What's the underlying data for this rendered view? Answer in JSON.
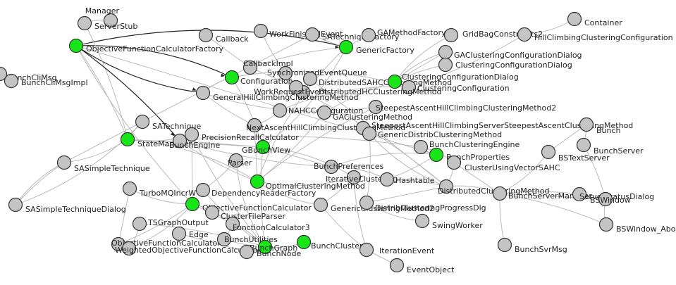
{
  "graph": {
    "colors": {
      "node_default": "#c4c4c4",
      "node_highlight": "#19e619",
      "edge": "#bbbbbb",
      "edge_dark": "#222222",
      "label": "#222222",
      "label_blue": "#1a1aa8"
    },
    "nodes": [
      {
        "id": "n1",
        "label": "Manager",
        "hl": false
      },
      {
        "id": "n2",
        "label": "ServerStub",
        "hl": false
      },
      {
        "id": "n3",
        "label": "ObjectiveFunctionCalculatorFactory",
        "hl": true
      },
      {
        "id": "n4",
        "label": "Callback",
        "hl": false
      },
      {
        "id": "n5",
        "label": "WorkFinishedEvent",
        "hl": false
      },
      {
        "id": "n6",
        "label": "SATechniqueFactory",
        "hl": false
      },
      {
        "id": "n7",
        "label": "GAMethodFactory",
        "hl": false
      },
      {
        "id": "n8",
        "label": "GridBagConstraints2",
        "hl": false
      },
      {
        "id": "n9",
        "label": "Container",
        "hl": false
      },
      {
        "id": "n10",
        "label": "HillClimbingClusteringConfiguration",
        "hl": false
      },
      {
        "id": "n11",
        "label": "GenericFactory",
        "hl": true
      },
      {
        "id": "n12",
        "label": "GAClusteringConfigurationDialog",
        "hl": false
      },
      {
        "id": "n13",
        "label": "ClusteringConfigurationDialog",
        "hl": false
      },
      {
        "id": "n14",
        "label": "BunchCliMsg",
        "hl": false
      },
      {
        "id": "n15",
        "label": "BunchCliMsgImpl",
        "hl": false
      },
      {
        "id": "n16",
        "label": "CallbackImpl",
        "hl": false
      },
      {
        "id": "n17",
        "label": "SynchronizedEventQueue",
        "hl": false
      },
      {
        "id": "n18",
        "label": "Configuration",
        "hl": true
      },
      {
        "id": "n19",
        "label": "DistributedSAHCClusteringMethod",
        "hl": false
      },
      {
        "id": "n20",
        "label": "ClusteringConfigurationDialog",
        "hl": true
      },
      {
        "id": "n21",
        "label": "ClusteringConfiguration",
        "hl": false
      },
      {
        "id": "n22",
        "label": "DistributedHCClusteringMethod",
        "hl": false
      },
      {
        "id": "n23",
        "label": "WorkRequestEvent",
        "hl": false
      },
      {
        "id": "n24",
        "label": "GeneralHillClimbingClusteringMethod",
        "hl": false
      },
      {
        "id": "n25",
        "label": "SteepestAscentHillClimbingClusteringMethod2",
        "hl": false
      },
      {
        "id": "n26",
        "label": "NAHCConfiguration",
        "hl": false
      },
      {
        "id": "n27",
        "label": "GAClusteringMethod",
        "hl": false
      },
      {
        "id": "n28",
        "label": "SATechnique",
        "hl": false
      },
      {
        "id": "n29",
        "label": "NextAscentHillClimbingClusteringMethod",
        "hl": false
      },
      {
        "id": "n30",
        "label": "SteepestAscentHillClimbingServerSteepestAscentClusteringMethod",
        "hl": false
      },
      {
        "id": "n31",
        "label": "Bunch",
        "hl": false
      },
      {
        "id": "n32",
        "label": "StateManager",
        "hl": true
      },
      {
        "id": "n33",
        "label": "BunchEngine",
        "hl": false
      },
      {
        "id": "n34",
        "label": "PrecisionRecallCalculator",
        "hl": false
      },
      {
        "id": "n35",
        "label": "GenericDistribClusteringMethod",
        "hl": false
      },
      {
        "id": "n36",
        "label": "BSTextServer",
        "hl": false
      },
      {
        "id": "n37",
        "label": "BunchServer",
        "hl": false
      },
      {
        "id": "n38",
        "label": "GBunchView",
        "hl": true
      },
      {
        "id": "n39",
        "label": "BunchClusteringEngine",
        "hl": false
      },
      {
        "id": "n40",
        "label": "BunchProperties",
        "hl": true
      },
      {
        "id": "n41",
        "label": "ClusterUsingVectorSAHC",
        "hl": false
      },
      {
        "id": "n42",
        "label": "SASimpleTechnique",
        "hl": false
      },
      {
        "id": "n43",
        "label": "Parser",
        "hl": false
      },
      {
        "id": "n44",
        "label": "BunchPreferences",
        "hl": false
      },
      {
        "id": "n45",
        "label": "IterativeClustering",
        "hl": false
      },
      {
        "id": "n46",
        "label": "Hashtable",
        "hl": false
      },
      {
        "id": "n47",
        "label": "TurboMQIncrW",
        "hl": false
      },
      {
        "id": "n48",
        "label": "DependencyReaderFactory",
        "hl": false
      },
      {
        "id": "n49",
        "label": "OptimalClusteringMethod",
        "hl": true
      },
      {
        "id": "n50",
        "label": "DistributedClusteringMethod",
        "hl": false
      },
      {
        "id": "n51",
        "label": "BunchServerManager",
        "hl": false
      },
      {
        "id": "n52",
        "label": "ServerStatusDialog",
        "hl": false
      },
      {
        "id": "n53",
        "label": "BSWindow",
        "hl": false
      },
      {
        "id": "n54",
        "label": "SASimpleTechniqueDialog",
        "hl": false
      },
      {
        "id": "n55",
        "label": "ObjectiveFunctionCalculator",
        "hl": true
      },
      {
        "id": "n56",
        "label": "GenericClusteringMethod2",
        "hl": false
      },
      {
        "id": "n57",
        "label": "DistribClusteringProgressDlg",
        "hl": false
      },
      {
        "id": "n58",
        "label": "ClusterFileParser",
        "hl": false
      },
      {
        "id": "n59",
        "label": "SwingWorker",
        "hl": false
      },
      {
        "id": "n60",
        "label": "BSWindow_AboutBox",
        "hl": false
      },
      {
        "id": "n61",
        "label": "TSGraphOutput",
        "hl": false
      },
      {
        "id": "n62",
        "label": "FunctionCalculator3",
        "hl": false
      },
      {
        "id": "n63",
        "label": "Edge",
        "hl": false
      },
      {
        "id": "n64",
        "label": "BunchSvrMsg",
        "hl": false
      },
      {
        "id": "n65",
        "label": "ObjectiveFunctionCalculator",
        "hl": false
      },
      {
        "id": "n66",
        "label": "BunchUtilities",
        "hl": false
      },
      {
        "id": "n67",
        "label": "WeightedObjectiveFunctionCalculator",
        "hl": false
      },
      {
        "id": "n68",
        "label": "BunchCluster",
        "hl": true
      },
      {
        "id": "n69",
        "label": "BunchGraph",
        "hl": true
      },
      {
        "id": "n70",
        "label": "IterationEvent",
        "hl": false
      },
      {
        "id": "n71",
        "label": "BunchNode",
        "hl": false
      },
      {
        "id": "n72",
        "label": "EventObject",
        "hl": false
      }
    ]
  }
}
